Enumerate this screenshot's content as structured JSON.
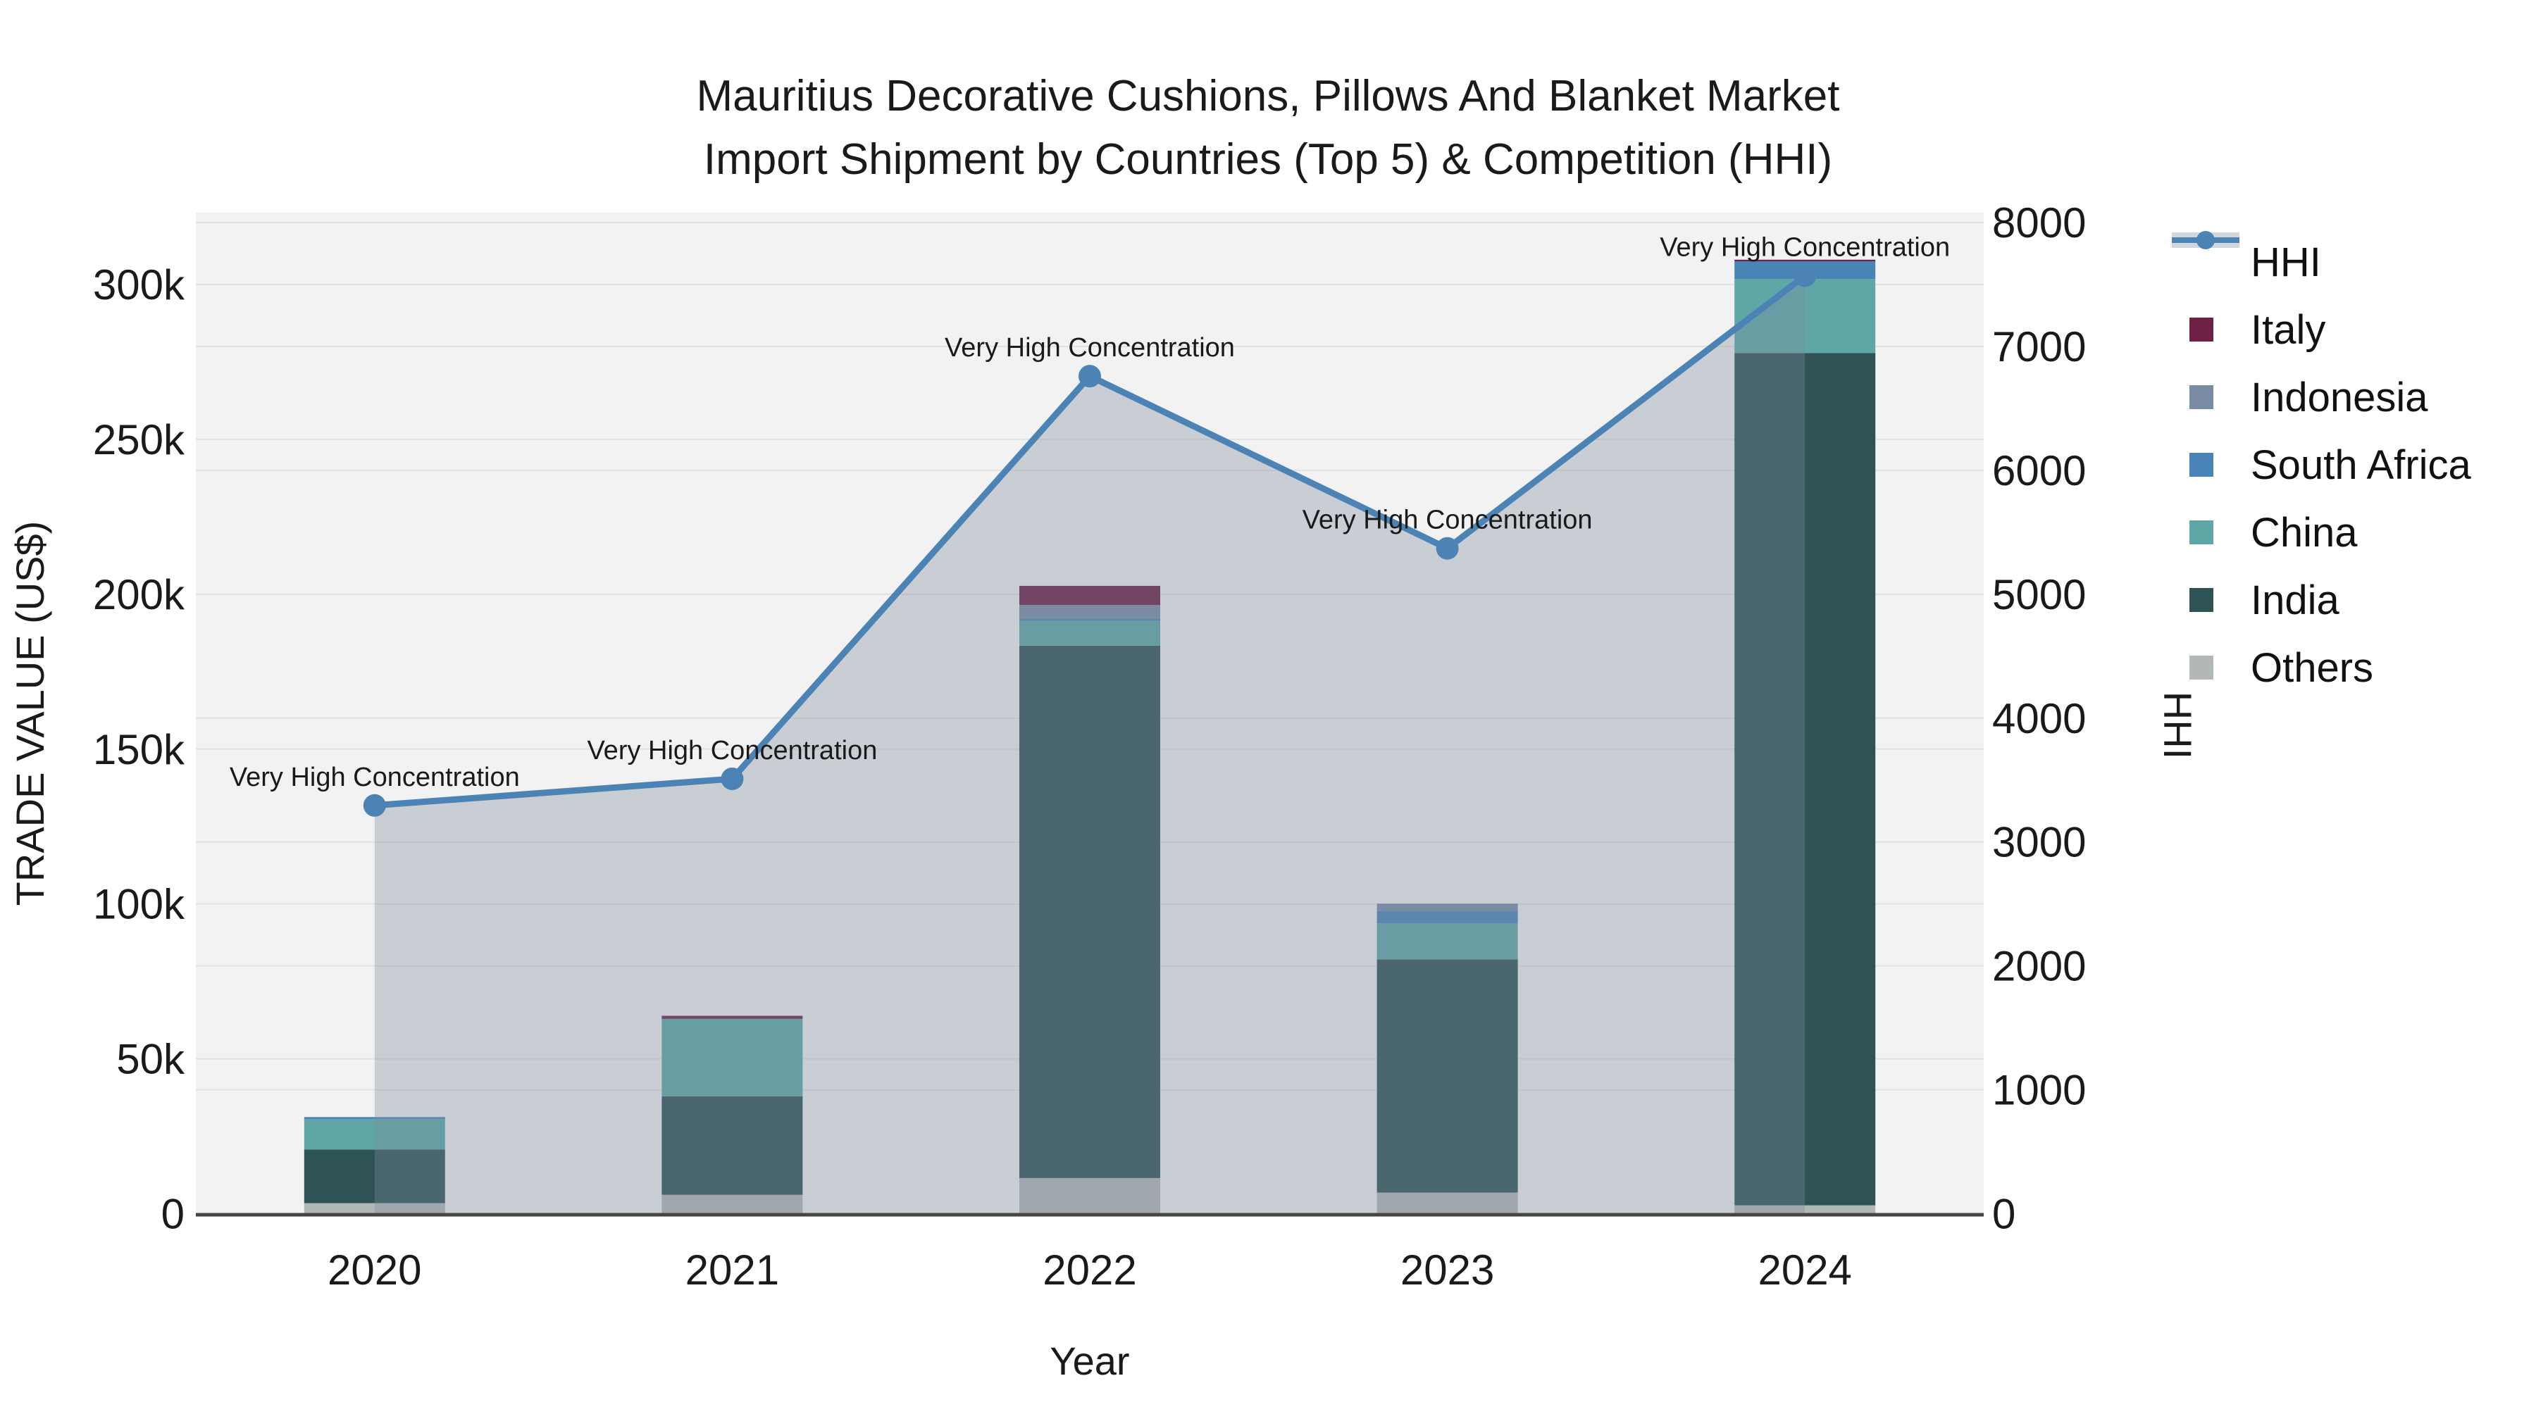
{
  "title": {
    "line1": "Mauritius Decorative Cushions, Pillows And Blanket Market",
    "line2": "Import Shipment by Countries (Top 5) & Competition (HHI)"
  },
  "axes": {
    "x": {
      "title": "Year",
      "ticks": [
        "2020",
        "2021",
        "2022",
        "2023",
        "2024"
      ]
    },
    "y_left": {
      "title": "TRADE VALUE (US$)",
      "ticks": [
        "0",
        "50k",
        "100k",
        "150k",
        "200k",
        "250k",
        "300k"
      ],
      "tick_values": [
        0,
        50000,
        100000,
        150000,
        200000,
        250000,
        300000
      ]
    },
    "y_right": {
      "title": "HHI",
      "ticks": [
        "0",
        "1000",
        "2000",
        "3000",
        "4000",
        "5000",
        "6000",
        "7000",
        "8000"
      ],
      "tick_values": [
        0,
        1000,
        2000,
        3000,
        4000,
        5000,
        6000,
        7000,
        8000
      ]
    }
  },
  "legend": {
    "items": [
      {
        "label": "HHI",
        "type": "line",
        "color_key": "hhi_line"
      },
      {
        "label": "Italy",
        "type": "swatch",
        "color_key": "italy"
      },
      {
        "label": "Indonesia",
        "type": "swatch",
        "color_key": "indonesia"
      },
      {
        "label": "South Africa",
        "type": "swatch",
        "color_key": "south_africa"
      },
      {
        "label": "China",
        "type": "swatch",
        "color_key": "china"
      },
      {
        "label": "India",
        "type": "swatch",
        "color_key": "india"
      },
      {
        "label": "Others",
        "type": "swatch",
        "color_key": "others"
      }
    ]
  },
  "colors": {
    "hhi_line": "#4C83B5",
    "area_fill": "#7F8CA0",
    "area_fill_opacity": 0.35,
    "italy": "#6E2045",
    "indonesia": "#7A8CA3",
    "south_africa": "#4A83B8",
    "china": "#5FA7A7",
    "india": "#2E5355",
    "others": "#B2B7B7",
    "plot_bg": "#F2F2F2",
    "grid": "#E2E2E2",
    "axis_line": "#454545",
    "text": "#1a1a1a"
  },
  "chart_data": {
    "type": "combo",
    "subtypes": [
      "stacked-bar",
      "line-area"
    ],
    "categories": [
      "2020",
      "2021",
      "2022",
      "2023",
      "2024"
    ],
    "bar_value_unit": "US$",
    "bar_stack_order_note": "series listed bottom to top of stack",
    "series": [
      {
        "name": "Others",
        "color_key": "others",
        "values": [
          3400,
          6100,
          11500,
          6800,
          2700
        ]
      },
      {
        "name": "India",
        "color_key": "india",
        "values": [
          17300,
          31800,
          171900,
          75300,
          275200
        ]
      },
      {
        "name": "China",
        "color_key": "china",
        "values": [
          9800,
          25000,
          8000,
          11600,
          23900
        ]
      },
      {
        "name": "South Africa",
        "color_key": "south_africa",
        "values": [
          700,
          0,
          600,
          4100,
          5700
        ]
      },
      {
        "name": "Indonesia",
        "color_key": "indonesia",
        "values": [
          0,
          0,
          4500,
          2300,
          0
        ]
      },
      {
        "name": "Italy",
        "color_key": "italy",
        "values": [
          0,
          1000,
          6200,
          0,
          500
        ]
      }
    ],
    "bar_totals": [
      31200,
      63900,
      202700,
      100100,
      308000
    ],
    "line_series": {
      "name": "HHI",
      "axis": "right",
      "color_key": "hhi_line",
      "values": [
        3295,
        3510,
        6760,
        5370,
        7570
      ],
      "area_fill": true
    },
    "annotations": [
      {
        "category": "2020",
        "text": "Very High Concentration"
      },
      {
        "category": "2021",
        "text": "Very High Concentration"
      },
      {
        "category": "2022",
        "text": "Very High Concentration"
      },
      {
        "category": "2023",
        "text": "Very High Concentration"
      },
      {
        "category": "2024",
        "text": "Very High Concentration"
      }
    ],
    "ylim_left": [
      0,
      323000
    ],
    "ylim_right": [
      0,
      8083
    ],
    "grid": true,
    "legend_position": "right"
  }
}
